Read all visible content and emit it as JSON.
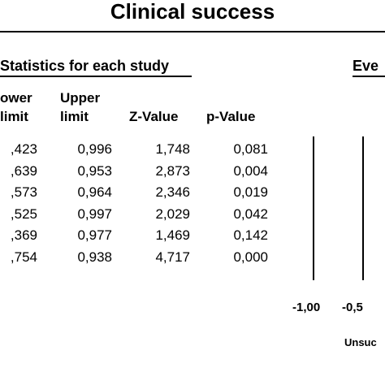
{
  "title": "Clinical success",
  "section_header": "Statistics for each study",
  "events_header": "Eve",
  "columns": {
    "lower": [
      "ower",
      "limit"
    ],
    "upper": [
      "Upper",
      "limit"
    ],
    "z": "Z-Value",
    "p": "p-Value"
  },
  "rows": [
    {
      "lower": ",423",
      "upper": "0,996",
      "z": "1,748",
      "p": "0,081"
    },
    {
      "lower": ",639",
      "upper": "0,953",
      "z": "2,873",
      "p": "0,004"
    },
    {
      "lower": ",573",
      "upper": "0,964",
      "z": "2,346",
      "p": "0,019"
    },
    {
      "lower": ",525",
      "upper": "0,997",
      "z": "2,029",
      "p": "0,042"
    },
    {
      "lower": ",369",
      "upper": "0,977",
      "z": "1,469",
      "p": "0,142"
    },
    {
      "lower": ",754",
      "upper": "0,938",
      "z": "4,717",
      "p": "0,000"
    }
  ],
  "chart_data": {
    "type": "forest",
    "axis_ticks": [
      "-1,00",
      "-0,5"
    ],
    "axis_tick_values": [
      -1.0,
      -0.5
    ],
    "favours_label": "Unsuc"
  }
}
